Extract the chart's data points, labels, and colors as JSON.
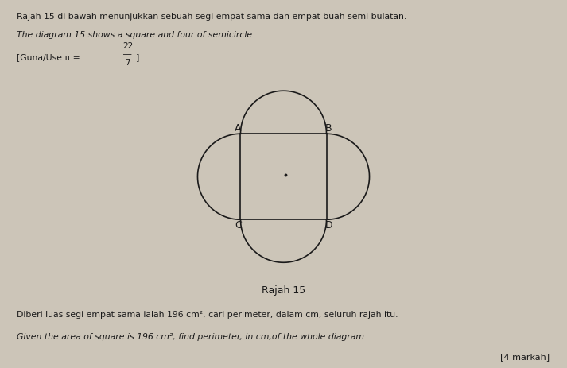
{
  "title_line1": "Rajah 15 di bawah menunjukkan sebuah segi empat sama dan empat buah semi bulatan.",
  "title_line2": "The diagram 15 shows a square and four of semicircle.",
  "pi_prefix": "[Guna/Use π = ",
  "pi_num": "22",
  "pi_den": "7",
  "pi_suffix": "]",
  "diagram_label": "Rajah 15",
  "bottom_text_line1": "Diberi luas segi empat sama ialah 196 cm², cari perimeter, dalam cm, seluruh rajah itu.",
  "bottom_text_line2": "Given the area of square is 196 cm², find perimeter, in cm,of the whole diagram.",
  "marks_text": "[4 markah]",
  "bg_color": "#ccc5b8",
  "text_color": "#1a1a1a",
  "line_color": "#1a1a1a",
  "fig_width": 7.13,
  "fig_height": 4.63
}
